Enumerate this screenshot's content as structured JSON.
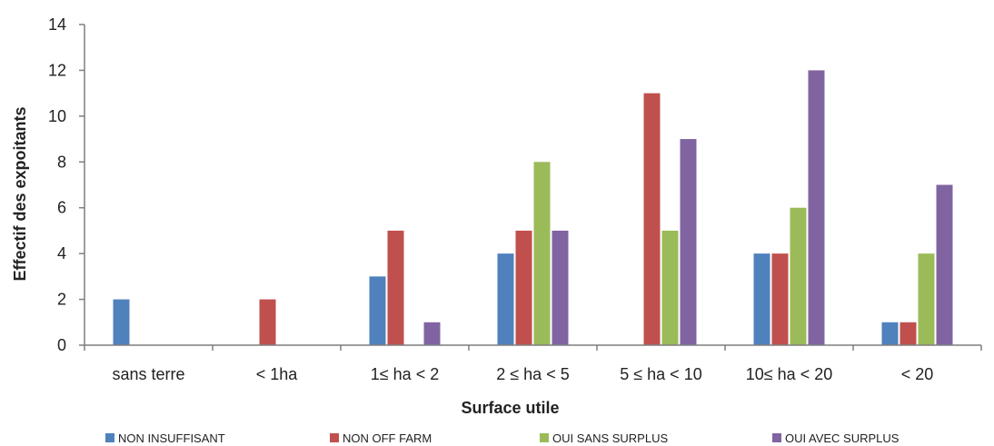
{
  "chart_data": {
    "type": "bar",
    "title": "",
    "xlabel": "Surface utile",
    "ylabel": "Effectif des expoitants",
    "ylim": [
      0,
      14
    ],
    "yticks": [
      "0",
      "2",
      "4",
      "6",
      "8",
      "10",
      "12",
      "14"
    ],
    "grid": false,
    "legend_position": "bottom",
    "categories": [
      "sans terre",
      "< 1ha",
      "1≤ ha < 2",
      "2 ≤ ha < 5",
      "5  ≤ ha < 10",
      "10≤ ha < 20",
      "< 20"
    ],
    "series": [
      {
        "name": "NON INSUFFISANT",
        "color": "#4f81bd",
        "values": [
          2,
          0,
          3,
          4,
          0,
          4,
          1
        ]
      },
      {
        "name": "NON OFF FARM",
        "color": "#c0504d",
        "values": [
          0,
          2,
          5,
          5,
          11,
          4,
          1
        ]
      },
      {
        "name": "OUI SANS SURPLUS",
        "color": "#9bbb59",
        "values": [
          0,
          0,
          0,
          8,
          5,
          6,
          4
        ]
      },
      {
        "name": "OUI AVEC SURPLUS",
        "color": "#8064a2",
        "values": [
          0,
          0,
          1,
          5,
          9,
          12,
          7
        ]
      }
    ]
  }
}
